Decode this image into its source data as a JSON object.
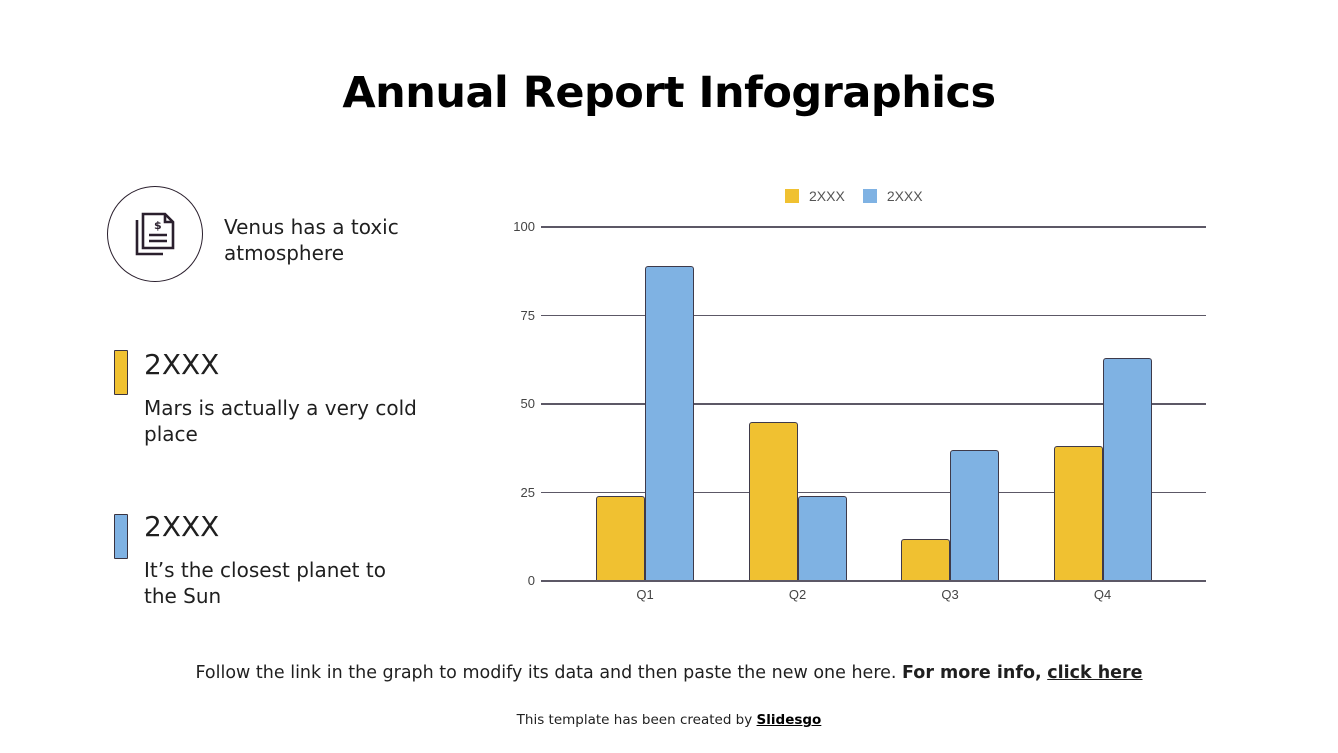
{
  "title": "Annual Report Infographics",
  "intro": {
    "icon": "document-dollar-icon",
    "text": "Venus has a toxic atmosphere"
  },
  "legend_items": [
    {
      "label": "2XXX",
      "description": "Mars is actually a very cold place",
      "color": "#F0C131"
    },
    {
      "label": "2XXX",
      "description": "It’s the closest planet to the Sun",
      "color": "#7FB2E3"
    }
  ],
  "footer": {
    "note": "Follow the link in the graph to modify its data and then paste the new one here.",
    "bold": "For more info,",
    "link": "click here"
  },
  "credit": {
    "text": "This template has been created by",
    "link": "Slidesgo"
  },
  "colors": {
    "series1": "#F0C131",
    "series2": "#7FB2E3",
    "gridline": "#5C5866",
    "bar_border": "#3E3A4A",
    "icon_stroke": "#2A1F2D"
  },
  "chart_data": {
    "type": "bar",
    "title": "",
    "categories": [
      "Q1",
      "Q2",
      "Q3",
      "Q4"
    ],
    "series": [
      {
        "name": "2XXX",
        "color": "#F0C131",
        "values": [
          24,
          45,
          12,
          38
        ]
      },
      {
        "name": "2XXX",
        "color": "#7FB2E3",
        "values": [
          89,
          24,
          37,
          63
        ]
      }
    ],
    "xlabel": "",
    "ylabel": "",
    "ylim": [
      0,
      100
    ],
    "yticks": [
      0,
      25,
      50,
      75,
      100
    ],
    "grid": true,
    "legend_position": "top"
  }
}
